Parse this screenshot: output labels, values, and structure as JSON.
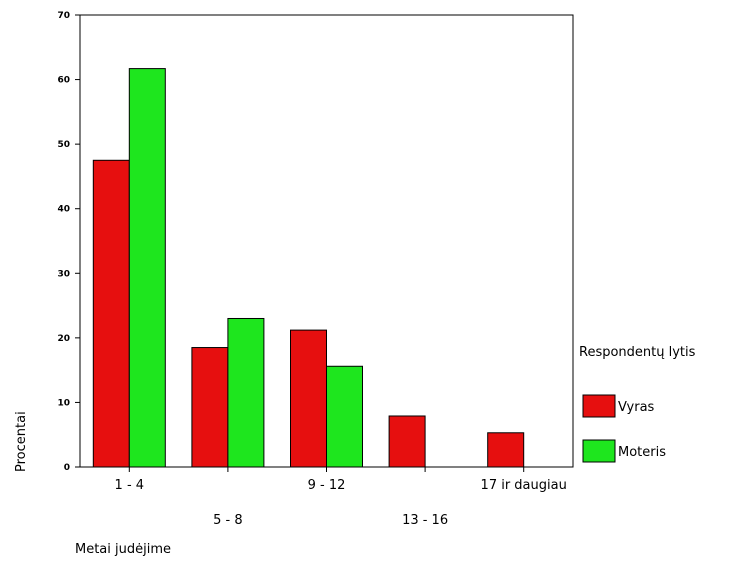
{
  "chart_data": {
    "type": "bar",
    "categories": [
      "1 - 4",
      "5 - 8",
      "9 - 12",
      "13 - 16",
      "17 ir daugiau"
    ],
    "series": [
      {
        "name": "Vyras",
        "color": "#e60f0f",
        "values": [
          47.5,
          18.5,
          21.2,
          7.9,
          5.3
        ]
      },
      {
        "name": "Moteris",
        "color": "#1ee61e",
        "values": [
          61.7,
          23.0,
          15.6,
          0,
          0
        ]
      }
    ],
    "title": "",
    "xlabel": "Metai judėjime",
    "ylabel": "Procentai",
    "ylim": [
      0,
      70
    ],
    "yticks": [
      "0",
      "10",
      "20",
      "30",
      "40",
      "50",
      "60",
      "70"
    ],
    "grid": false,
    "legend_title": "Respondentų lytis",
    "legend_position": "right"
  }
}
